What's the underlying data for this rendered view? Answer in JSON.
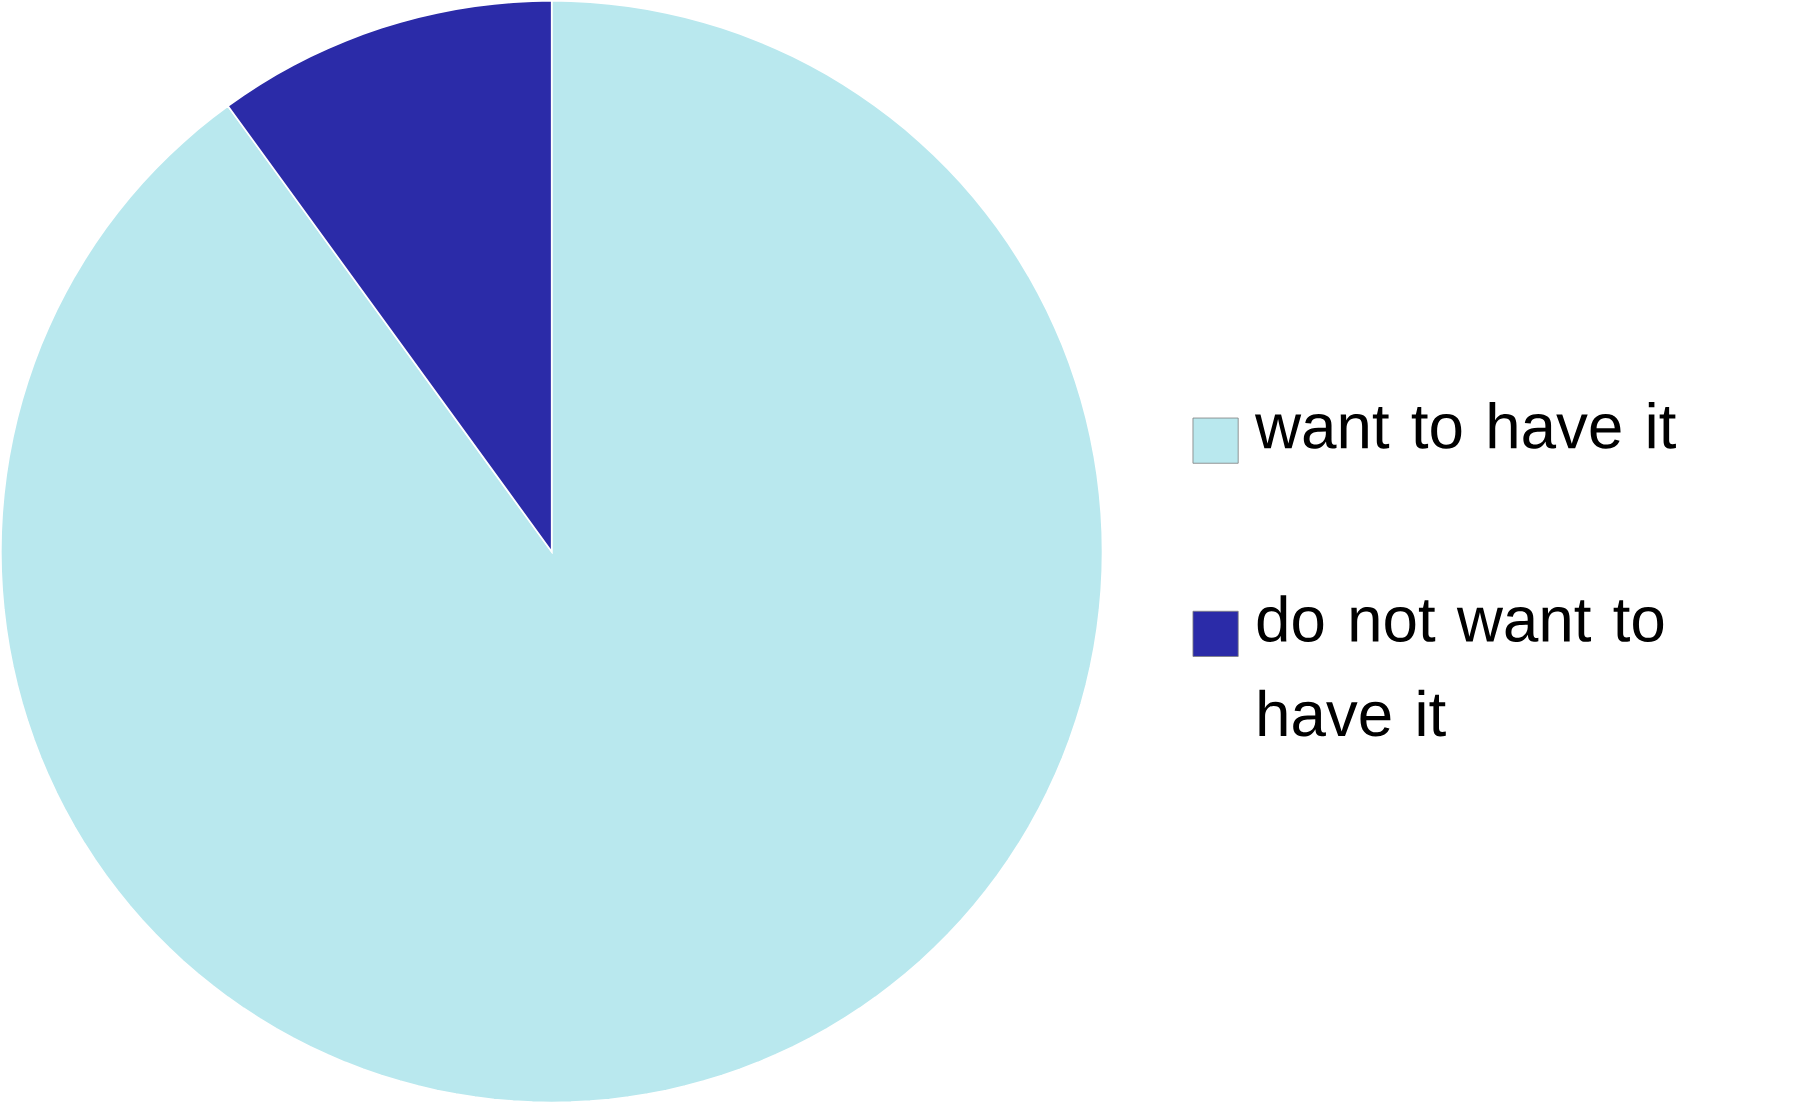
{
  "chart_data": {
    "type": "pie",
    "categories": [
      "want to have it",
      "do not want to have it"
    ],
    "values": [
      90,
      10
    ],
    "colors": [
      "#b9e8ee",
      "#2b2ba8"
    ],
    "legend": "right"
  }
}
